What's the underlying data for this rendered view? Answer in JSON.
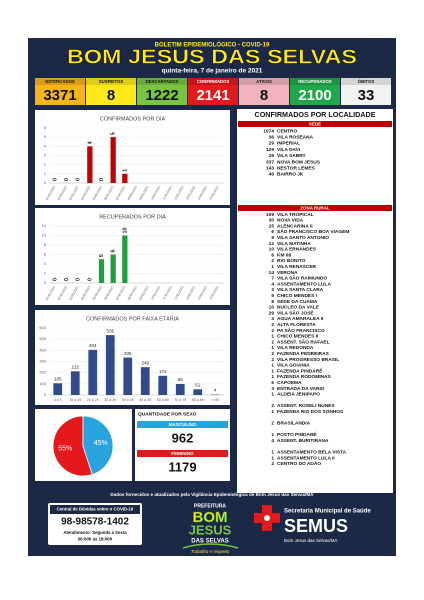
{
  "header": {
    "kicker": "BOLETIM EPIDEMIOLÓGICO - COVID-19",
    "title": "BOM JESUS DAS SELVAS",
    "date": "quinta-feira, 7 de janeiro de 2021"
  },
  "stats": [
    {
      "label": "NOTIFICADOS",
      "value": 3371,
      "color": "#f5b41a"
    },
    {
      "label": "SUSPEITOS",
      "value": 8,
      "color": "#ffe81a"
    },
    {
      "label": "DESCARTADOS",
      "value": 1222,
      "color": "#79c442"
    },
    {
      "label": "CONFIRMADOS",
      "value": 2141,
      "color": "#e3191c"
    },
    {
      "label": "ATIVOS",
      "value": 8,
      "color": "#f2b3bf"
    },
    {
      "label": "RECUPERADOS",
      "value": 2100,
      "color": "#20a84a"
    },
    {
      "label": "ÓBITOS",
      "value": 33,
      "color": "#f2f2f2"
    }
  ],
  "chart_data": [
    {
      "type": "bar",
      "title": "CONFIRMADOS POR DIA",
      "categories": [
        "01/01/2021",
        "02/01/2021",
        "03/01/2021",
        "04/01/2021",
        "05/01/2021",
        "06/01/2021",
        "07/01/2021",
        "08/01/2021",
        "09/01/2021",
        "10/01/2021",
        "11/01/2021",
        "12/01/2021",
        "13/01/2021",
        "14/01/2021",
        "15/01/2021"
      ],
      "values": [
        0,
        0,
        0,
        4,
        0,
        5,
        1,
        null,
        null,
        null,
        null,
        null,
        null,
        null,
        null
      ],
      "color": "#c00000",
      "ylim": [
        0,
        6
      ],
      "yticks": [
        0,
        1,
        2,
        3,
        4,
        5,
        6
      ],
      "grid": true
    },
    {
      "type": "bar",
      "title": "RECUPERADOS POR DIA",
      "categories": [
        "01/01/2021",
        "02/01/2021",
        "03/01/2021",
        "04/01/2021",
        "05/01/2021",
        "06/01/2021",
        "07/01/2021",
        "08/01/2021",
        "09/01/2021",
        "10/01/2021",
        "11/01/2021",
        "12/01/2021",
        "13/01/2021",
        "14/01/2021",
        "15/01/2021"
      ],
      "values": [
        0,
        0,
        0,
        0,
        5,
        6,
        10,
        null,
        null,
        null,
        null,
        null,
        null,
        null,
        null
      ],
      "color": "#1e9e3c",
      "ylim": [
        0,
        12
      ],
      "yticks": [
        0,
        2,
        4,
        6,
        8,
        10,
        12
      ],
      "grid": true
    },
    {
      "type": "bar",
      "title": "CONFIRMADOS POR FAIXA ETÁRIA",
      "categories": [
        "0 a 9",
        "10 a 19",
        "20 a 29",
        "30 a 39",
        "40 a 49",
        "50 a 59",
        "60 a 69",
        "70 a 79",
        "80 a 89",
        ">=90"
      ],
      "values": [
        105,
        212,
        404,
        536,
        335,
        249,
        172,
        99,
        51,
        4
      ],
      "color": "#2f4b8a",
      "ylim": [
        0,
        600
      ],
      "yticks": [
        0,
        100,
        200,
        300,
        400,
        500,
        600
      ],
      "grid": true
    },
    {
      "type": "pie",
      "values": [
        55,
        45
      ],
      "value_labels": [
        "55%",
        "45%"
      ],
      "colors": [
        "#e3191c",
        "#29a3dd"
      ]
    }
  ],
  "sex": {
    "title": "QUANTIDADE POR SEXO",
    "groups": [
      {
        "name": "MASCULINO",
        "count": "962",
        "color": "#29a3dd"
      },
      {
        "name": "FEMININO",
        "count": "1179",
        "color": "#e3191c"
      }
    ]
  },
  "localidade": {
    "title": "CONFIRMADOS POR LOCALIDADE",
    "sede_title": "SEDE",
    "sede": [
      {
        "count": "1074",
        "name": "CENTRO"
      },
      {
        "count": "36",
        "name": "VILA ROSEANA"
      },
      {
        "count": "29",
        "name": "IMPERIAL"
      },
      {
        "count": "129",
        "name": "VILA DAVI"
      },
      {
        "count": "26",
        "name": "VILA SABRY"
      },
      {
        "count": "337",
        "name": "NOVA BOM JESUS"
      },
      {
        "count": "143",
        "name": "NESTOR LEMES"
      },
      {
        "count": "46",
        "name": "BAIRRO JK"
      }
    ],
    "rural_title": "ZONA RURAL",
    "rural_groups": [
      [
        {
          "count": "109",
          "name": "VILA TROPICAL"
        },
        {
          "count": "30",
          "name": "NOVA VIDA"
        },
        {
          "count": "25",
          "name": "ALENCARINA II"
        },
        {
          "count": "6",
          "name": "SÃO FRANCISCO BOA VIAGEM"
        },
        {
          "count": "9",
          "name": "VILA SANTO ANTONIO"
        },
        {
          "count": "12",
          "name": "VILA MATINHA"
        },
        {
          "count": "10",
          "name": "VILA ERNANDES"
        },
        {
          "count": "6",
          "name": "KM 08"
        },
        {
          "count": "2",
          "name": "RIO BONITO"
        },
        {
          "count": "1",
          "name": "VILA RENASCER"
        },
        {
          "count": "14",
          "name": "VERONA"
        },
        {
          "count": "7",
          "name": "VILA SÃO RAIMUNDO"
        },
        {
          "count": "4",
          "name": "ASSENTAMENTO LULA"
        },
        {
          "count": "3",
          "name": "VILA SANTA CLARA"
        },
        {
          "count": "5",
          "name": "CHICO MENDES I"
        },
        {
          "count": "8",
          "name": "SEDE DA CUAMA"
        },
        {
          "count": "10",
          "name": "NUCLEO DA VALE"
        },
        {
          "count": "29",
          "name": "VILA SÃO JOSÉ"
        },
        {
          "count": "3",
          "name": "AGUA AMARALEA II"
        },
        {
          "count": "2",
          "name": "ALTA FLORESTA"
        },
        {
          "count": "2",
          "name": "PA SÃO FRANCISCO"
        },
        {
          "count": "1",
          "name": "CHICO MENDES II"
        },
        {
          "count": "1",
          "name": "ASSENT. SÃO RAFAEL"
        },
        {
          "count": "1",
          "name": "VILA REDONDA"
        },
        {
          "count": "2",
          "name": "FAZENDA PEDREIRAS"
        },
        {
          "count": "2",
          "name": "VILA PROGRESSO BRASIL"
        },
        {
          "count": "1",
          "name": "VILA GOIANIA"
        },
        {
          "count": "1",
          "name": "FAZENDA PINDARÉ"
        },
        {
          "count": "1",
          "name": "FAZENDA RODOMINAS"
        },
        {
          "count": "6",
          "name": "CAPOEMA"
        },
        {
          "count": "3",
          "name": "ENTRADA DA VARIG"
        },
        {
          "count": "1",
          "name": "ALDEIA JENIPAPO"
        }
      ],
      [
        {
          "count": "2",
          "name": "ASSENT. ROSELI NUNES"
        },
        {
          "count": "1",
          "name": "FAZENDA RIO DOS SONHOS"
        }
      ],
      [
        {
          "count": "2",
          "name": "BRASILANDIA"
        }
      ],
      [
        {
          "count": "1",
          "name": "POSTO PINDARÉ"
        },
        {
          "count": "4",
          "name": "ASSENT. BURITIRANA"
        }
      ],
      [
        {
          "count": "1",
          "name": "ASSENTAMENTO BELA VISTA"
        },
        {
          "count": "1",
          "name": "ASSENTAMENTO LULA II"
        },
        {
          "count": "2",
          "name": "CENTRO DO ADÃO"
        }
      ]
    ]
  },
  "footer": {
    "source": "Dados fornecidos e atualizados pela Vigilância Epidemiológica de Bom Jesus das Selvas/MA",
    "hotline_title": "Central de Dúvidas sobre o COVID-19",
    "hotline_phone": "98-98578-1402",
    "hotline_days": "Atendimento: Segunda à Sexta",
    "hotline_hours": "08:00h às 18:00h",
    "city_kicker": "PREFEITURA",
    "city_line1": "BOM",
    "city_line2": "JESUS",
    "city_line3": "DAS SELVAS",
    "city_motto": "Trabalho e respeito",
    "health_title": "Secretaria Municipal de Saúde",
    "health_name": "SEMUS",
    "health_place": "Bom Jesus das Selvas/MA"
  }
}
